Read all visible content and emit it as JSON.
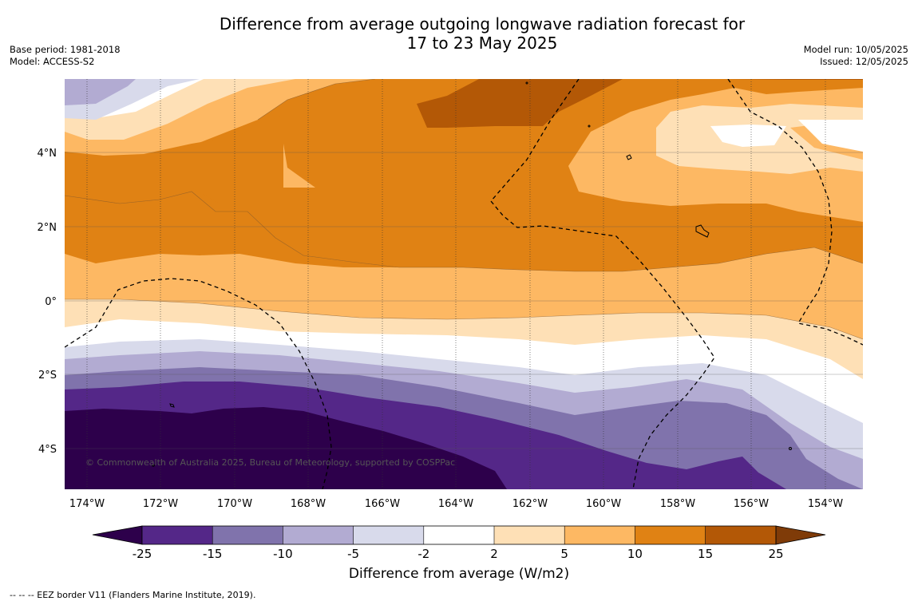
{
  "title": {
    "line1": "Difference from average outgoing longwave radiation forecast for",
    "line2": "17 to 23 May 2025"
  },
  "meta_left": {
    "base_period": "Base period: 1981-2018",
    "model": "Model: ACCESS-S2"
  },
  "meta_right": {
    "model_run": "Model run: 10/05/2025",
    "issued": "Issued: 12/05/2025"
  },
  "map": {
    "lon_ticks": [
      "174°W",
      "172°W",
      "170°W",
      "168°W",
      "166°W",
      "164°W",
      "162°W",
      "160°W",
      "158°W",
      "156°W",
      "154°W"
    ],
    "lat_ticks": [
      "4°N",
      "2°N",
      "0°",
      "2°S",
      "4°S"
    ],
    "copyright": "© Commonwealth of Australia 2025, Bureau of Meteorology, supported by COSPPac"
  },
  "colorbar": {
    "ticks": [
      "-25",
      "-15",
      "-10",
      "-5",
      "-2",
      "2",
      "5",
      "10",
      "15",
      "25"
    ],
    "colors": [
      "#2d004b",
      "#542788",
      "#8073ac",
      "#b2abd2",
      "#d8daeb",
      "#ffffff",
      "#fee0b6",
      "#fdb863",
      "#e08214",
      "#b35806",
      "#7f3b08"
    ],
    "title": "Difference from average (W/m2)"
  },
  "footnote": "--  --  -- EEZ border V11 (Flanders Marine Institute, 2019)."
}
